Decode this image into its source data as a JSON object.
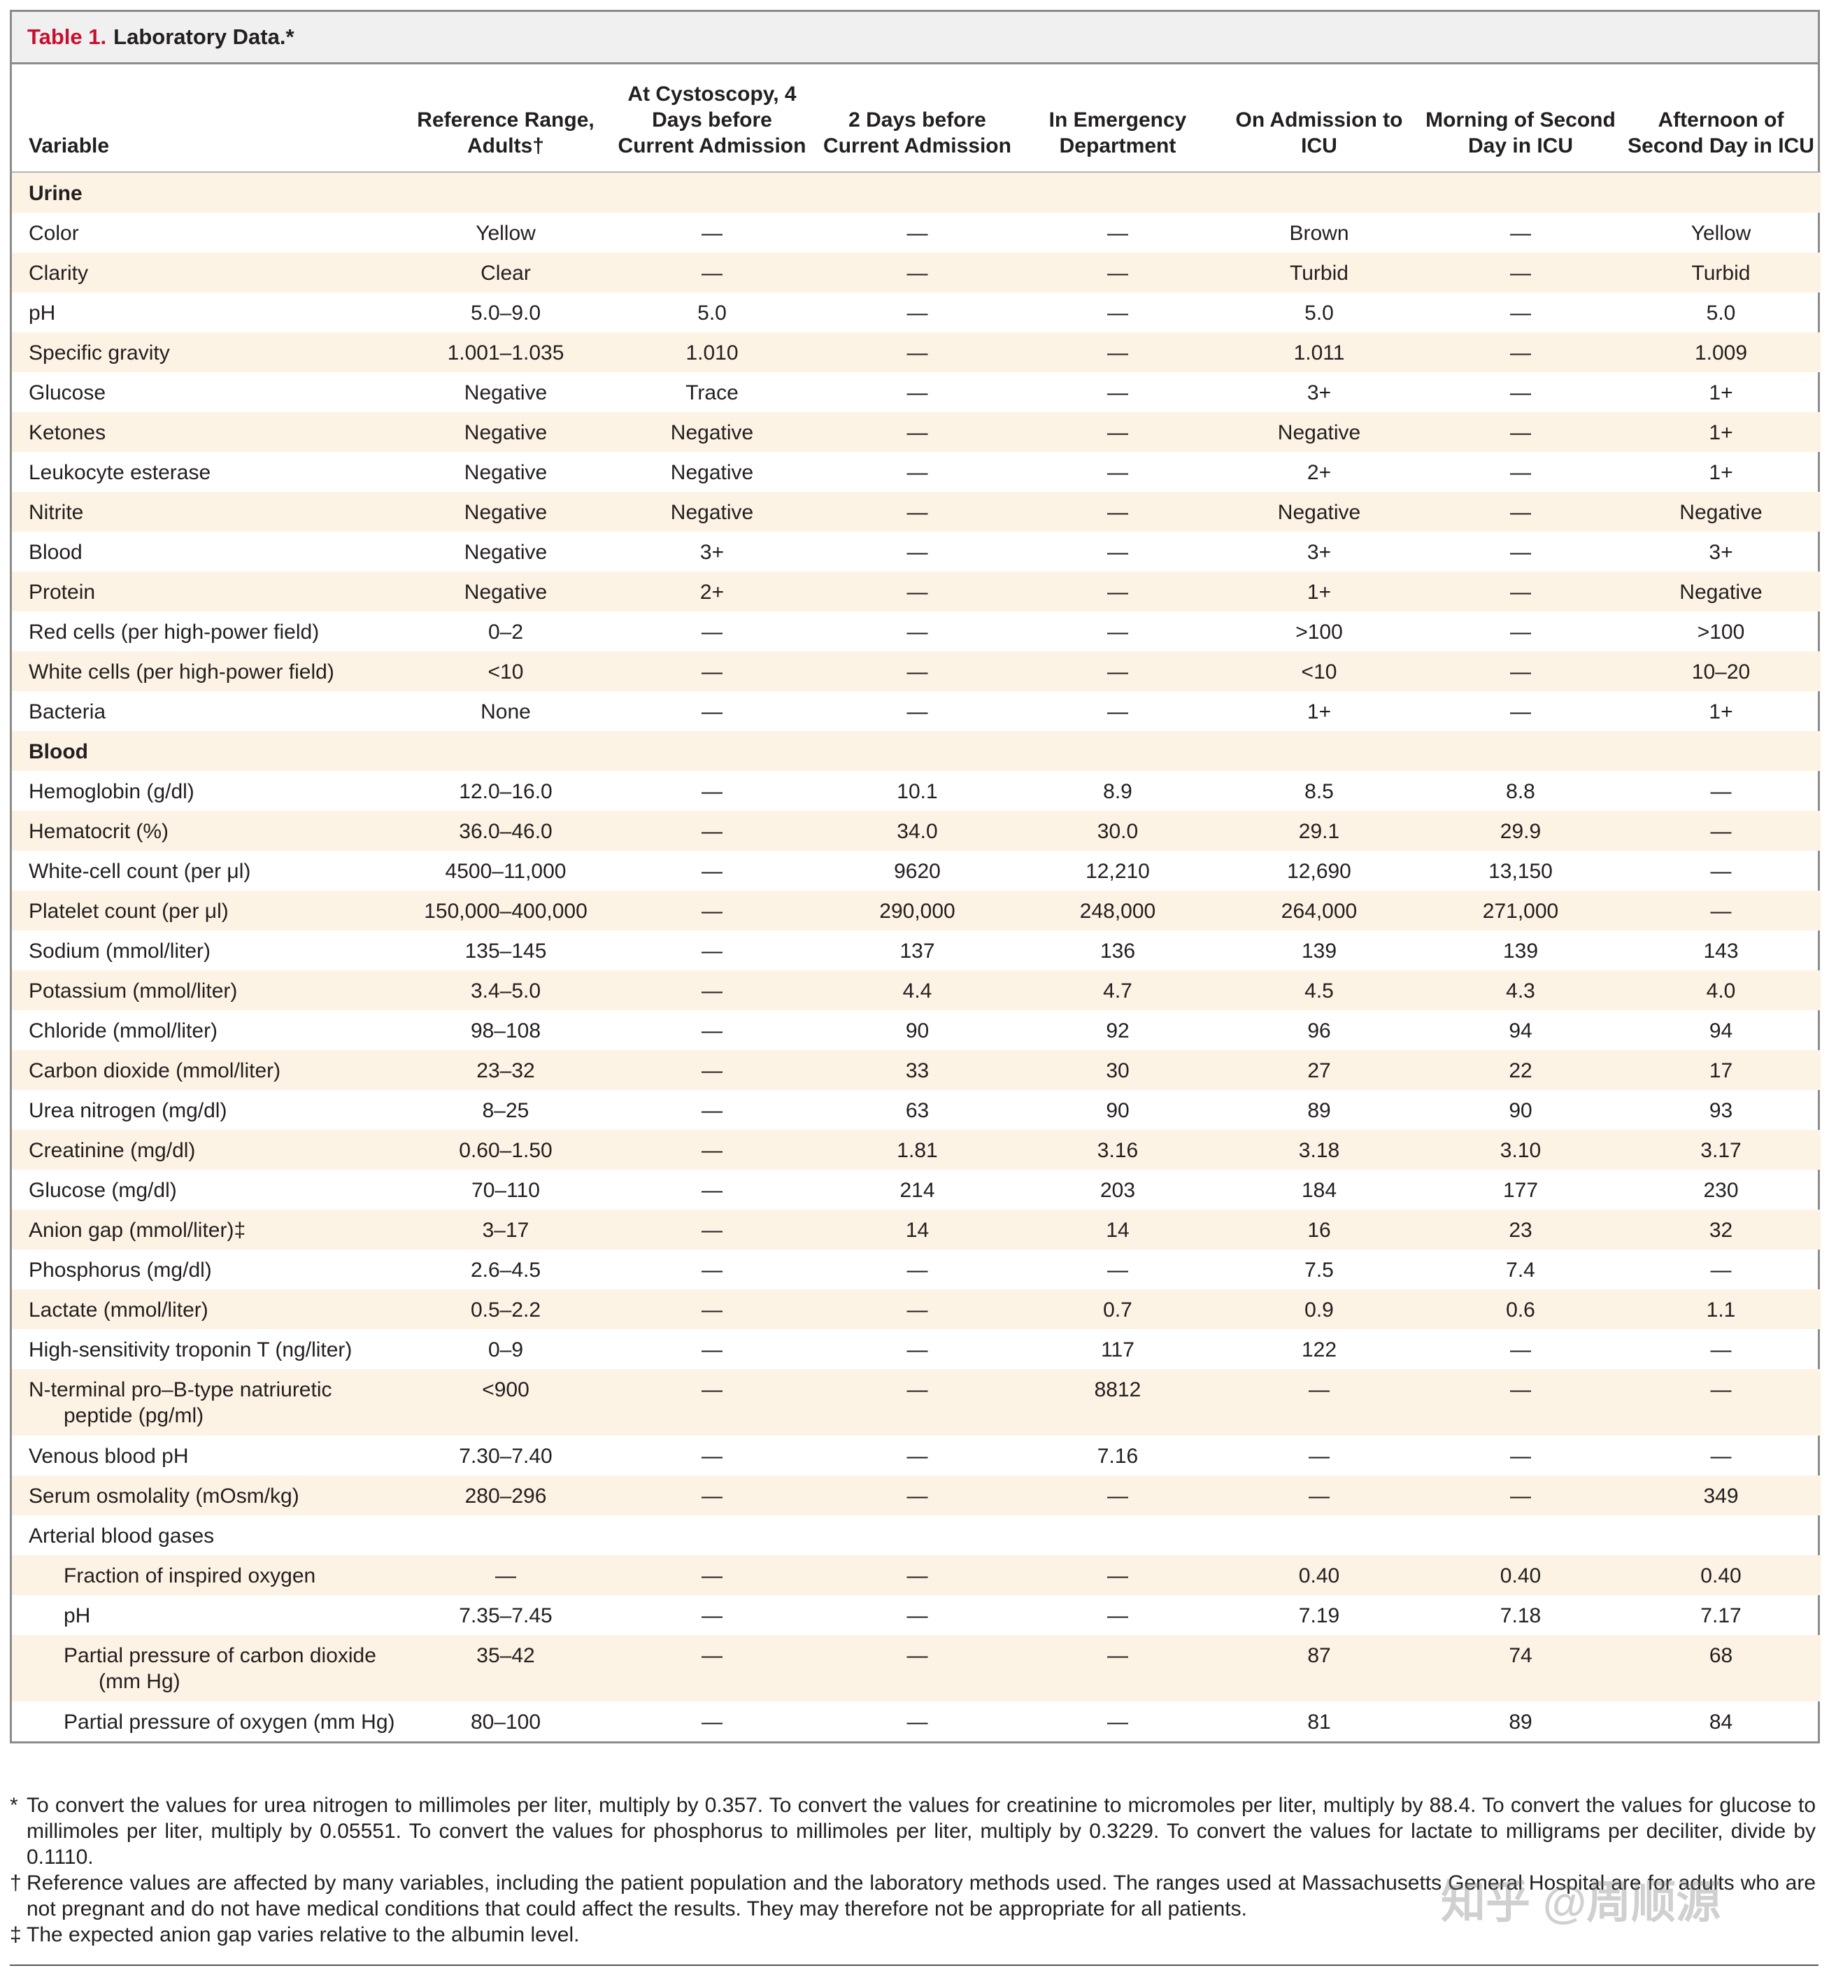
{
  "title": {
    "label": "Table 1.",
    "text": "Laboratory Data.*"
  },
  "header": [
    "Variable",
    "Reference Range, Adults†",
    "At Cystoscopy, 4 Days before Current Admission",
    "2 Days before Current Admission",
    "In Emergency Department",
    "On Admission to ICU",
    "Morning of Second Day in ICU",
    "Afternoon of Second Day in ICU"
  ],
  "sections": [
    {
      "title": "Urine",
      "rows": [
        [
          "Color",
          "Yellow",
          "—",
          "—",
          "—",
          "Brown",
          "—",
          "Yellow"
        ],
        [
          "Clarity",
          "Clear",
          "—",
          "—",
          "—",
          "Turbid",
          "—",
          "Turbid"
        ],
        [
          "pH",
          "5.0–9.0",
          "5.0",
          "—",
          "—",
          "5.0",
          "—",
          "5.0"
        ],
        [
          "Specific gravity",
          "1.001–1.035",
          "1.010",
          "—",
          "—",
          "1.011",
          "—",
          "1.009"
        ],
        [
          "Glucose",
          "Negative",
          "Trace",
          "—",
          "—",
          "3+",
          "—",
          "1+"
        ],
        [
          "Ketones",
          "Negative",
          "Negative",
          "—",
          "—",
          "Negative",
          "—",
          "1+"
        ],
        [
          "Leukocyte esterase",
          "Negative",
          "Negative",
          "—",
          "—",
          "2+",
          "—",
          "1+"
        ],
        [
          "Nitrite",
          "Negative",
          "Negative",
          "—",
          "—",
          "Negative",
          "—",
          "Negative"
        ],
        [
          "Blood",
          "Negative",
          "3+",
          "—",
          "—",
          "3+",
          "—",
          "3+"
        ],
        [
          "Protein",
          "Negative",
          "2+",
          "—",
          "—",
          "1+",
          "—",
          "Negative"
        ],
        [
          "Red cells (per high-power field)",
          "0–2",
          "—",
          "—",
          "—",
          ">100",
          "—",
          ">100"
        ],
        [
          "White cells (per high-power field)",
          "<10",
          "—",
          "—",
          "—",
          "<10",
          "—",
          "10–20"
        ],
        [
          "Bacteria",
          "None",
          "—",
          "—",
          "—",
          "1+",
          "—",
          "1+"
        ]
      ]
    },
    {
      "title": "Blood",
      "rows": [
        [
          "Hemoglobin (g/dl)",
          "12.0–16.0",
          "—",
          "10.1",
          "8.9",
          "8.5",
          "8.8",
          "—"
        ],
        [
          "Hematocrit (%)",
          "36.0–46.0",
          "—",
          "34.0",
          "30.0",
          "29.1",
          "29.9",
          "—"
        ],
        [
          "White-cell count (per μl)",
          "4500–11,000",
          "—",
          "9620",
          "12,210",
          "12,690",
          "13,150",
          "—"
        ],
        [
          "Platelet count (per μl)",
          "150,000–400,000",
          "—",
          "290,000",
          "248,000",
          "264,000",
          "271,000",
          "—"
        ],
        [
          "Sodium (mmol/liter)",
          "135–145",
          "—",
          "137",
          "136",
          "139",
          "139",
          "143"
        ],
        [
          "Potassium (mmol/liter)",
          "3.4–5.0",
          "—",
          "4.4",
          "4.7",
          "4.5",
          "4.3",
          "4.0"
        ],
        [
          "Chloride (mmol/liter)",
          "98–108",
          "—",
          "90",
          "92",
          "96",
          "94",
          "94"
        ],
        [
          "Carbon dioxide (mmol/liter)",
          "23–32",
          "—",
          "33",
          "30",
          "27",
          "22",
          "17"
        ],
        [
          "Urea nitrogen (mg/dl)",
          "8–25",
          "—",
          "63",
          "90",
          "89",
          "90",
          "93"
        ],
        [
          "Creatinine (mg/dl)",
          "0.60–1.50",
          "—",
          "1.81",
          "3.16",
          "3.18",
          "3.10",
          "3.17"
        ],
        [
          "Glucose (mg/dl)",
          "70–110",
          "—",
          "214",
          "203",
          "184",
          "177",
          "230"
        ],
        [
          "Anion gap (mmol/liter)‡",
          "3–17",
          "—",
          "14",
          "14",
          "16",
          "23",
          "32"
        ],
        [
          "Phosphorus (mg/dl)",
          "2.6–4.5",
          "—",
          "—",
          "—",
          "7.5",
          "7.4",
          "—"
        ],
        [
          "Lactate (mmol/liter)",
          "0.5–2.2",
          "—",
          "—",
          "0.7",
          "0.9",
          "0.6",
          "1.1"
        ],
        [
          "High-sensitivity troponin T (ng/liter)",
          "0–9",
          "—",
          "—",
          "117",
          "122",
          "—",
          "—"
        ],
        [
          "N-terminal pro–B-type natriuretic peptide (pg/ml)",
          "<900",
          "—",
          "—",
          "8812",
          "—",
          "—",
          "—"
        ],
        [
          "Venous blood pH",
          "7.30–7.40",
          "—",
          "—",
          "7.16",
          "—",
          "—",
          "—"
        ],
        [
          "Serum osmolality (mOsm/kg)",
          "280–296",
          "—",
          "—",
          "—",
          "—",
          "—",
          "349"
        ],
        [
          "Arterial blood gases"
        ],
        [
          "Fraction of inspired oxygen",
          "—",
          "—",
          "—",
          "—",
          "0.40",
          "0.40",
          "0.40"
        ],
        [
          "pH",
          "7.35–7.45",
          "—",
          "—",
          "—",
          "7.19",
          "7.18",
          "7.17"
        ],
        [
          "Partial pressure of carbon dioxide (mm Hg)",
          "35–42",
          "—",
          "—",
          "—",
          "87",
          "74",
          "68"
        ],
        [
          "Partial pressure of oxygen (mm Hg)",
          "80–100",
          "—",
          "—",
          "—",
          "81",
          "89",
          "84"
        ]
      ]
    }
  ],
  "footnotes": [
    {
      "symbol": "*",
      "text": "To convert the values for urea nitrogen to millimoles per liter, multiply by 0.357. To convert the values for creatinine to micromoles per liter, multiply by 88.4. To convert the values for glucose to millimoles per liter, multiply by 0.05551. To convert the values for phosphorus to millimoles per liter, multiply by 0.3229. To convert the values for lactate to milligrams per deciliter, divide by 0.1110."
    },
    {
      "symbol": "†",
      "text": "Reference values are affected by many variables, including the patient population and the laboratory methods used. The ranges used at Massachusetts General Hospital are for adults who are not pregnant and do not have medical conditions that could affect the results. They may therefore not be appropriate for all patients."
    },
    {
      "symbol": "‡",
      "text": "The expected anion gap varies relative to the albumin level."
    }
  ],
  "watermark": "知乎 @周顺源"
}
